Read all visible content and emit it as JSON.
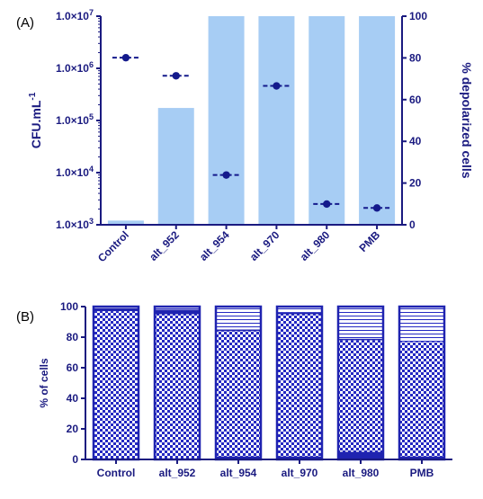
{
  "panel_a_label": "(A)",
  "panel_b_label": "(B)",
  "colors": {
    "axis": "#1a1a80",
    "bar_fill": "#a7cdf4",
    "marker": "#141a8c",
    "stack_outline": "#1f23b0",
    "stack_solid": "#1f23b0",
    "pattern_fg": "#2428c2"
  },
  "chart_data": [
    {
      "type": "bar",
      "panel": "A",
      "categories": [
        "Control",
        "alt_952",
        "alt_954",
        "alt_970",
        "alt_980",
        "PMB"
      ],
      "y_left": {
        "label": "CFU.mL",
        "label_superscript": "-1",
        "scale": "log",
        "ylim": [
          1000,
          10000000
        ],
        "tick_labels": [
          {
            "value": 1000,
            "mantissa": "1.0×10",
            "exp": "3"
          },
          {
            "value": 10000,
            "mantissa": "1.0×10",
            "exp": "4"
          },
          {
            "value": 100000,
            "mantissa": "1.0×10",
            "exp": "5"
          },
          {
            "value": 1000000,
            "mantissa": "1.0×10",
            "exp": "6"
          },
          {
            "value": 10000000,
            "mantissa": "1.0×10",
            "exp": "7"
          }
        ]
      },
      "y_right": {
        "label": "% depolarized cells",
        "scale": "linear",
        "ylim": [
          0,
          100
        ],
        "ticks": [
          "0",
          "20",
          "40",
          "60",
          "80",
          "100"
        ]
      },
      "series": [
        {
          "axis": "right",
          "style": "bar",
          "values": [
            2,
            56,
            100,
            100,
            100,
            100
          ]
        },
        {
          "axis": "left",
          "style": "point",
          "values": [
            1600000,
            720000,
            9000,
            460000,
            2500,
            2100
          ]
        }
      ],
      "grid": false
    },
    {
      "type": "bar",
      "stacked": true,
      "panel": "B",
      "categories": [
        "Control",
        "alt_952",
        "alt_954",
        "alt_970",
        "alt_980",
        "PMB"
      ],
      "ylabel": "% of cells",
      "ylim": [
        0,
        100
      ],
      "ticks": [
        "0",
        "20",
        "40",
        "60",
        "80",
        "100"
      ],
      "series": [
        {
          "pattern": "solid",
          "values": [
            0,
            0,
            2,
            2,
            5,
            2
          ]
        },
        {
          "pattern": "checker",
          "values": [
            97,
            95,
            82,
            93,
            73,
            75
          ]
        },
        {
          "pattern": "solid",
          "values": [
            2,
            3,
            1,
            1,
            1,
            0
          ]
        },
        {
          "pattern": "horizontal-lines",
          "values": [
            1,
            2,
            15,
            4,
            21,
            23
          ]
        }
      ],
      "grid": false
    }
  ]
}
